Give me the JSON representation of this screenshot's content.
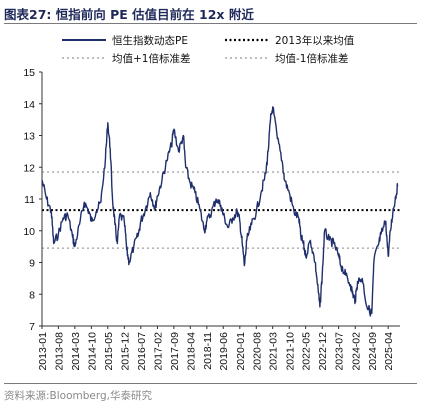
{
  "figure_label": "图表27:",
  "figure_title": "恒指前向 PE 估值目前在 12x 附近",
  "source": "资料来源:Bloomberg,华泰研究",
  "chart_data": {
    "type": "line",
    "title": "恒指前向 PE 估值目前在 12x 附近",
    "xlabel": "",
    "ylabel": "",
    "ylim": [
      7,
      15
    ],
    "yticks": [
      "7",
      "8",
      "9",
      "10",
      "11",
      "12",
      "13",
      "14",
      "15"
    ],
    "xticks": [
      "2013-01",
      "2013-08",
      "2014-03",
      "2014-10",
      "2015-05",
      "2015-12",
      "2016-07",
      "2017-02",
      "2017-09",
      "2018-04",
      "2018-11",
      "2019-06",
      "2020-01",
      "2020-08",
      "2021-03",
      "2021-10",
      "2022-05",
      "2022-12",
      "2023-07",
      "2024-02",
      "2024-09",
      "2025-04"
    ],
    "grid": false,
    "legend_position": "top",
    "series": [
      {
        "name": "恒生指数动态PE",
        "style": "solid",
        "color": "#1f2f6b",
        "x": [
          "2013-01",
          "2013-03",
          "2013-05",
          "2013-06",
          "2013-08",
          "2013-10",
          "2013-12",
          "2014-02",
          "2014-03",
          "2014-05",
          "2014-07",
          "2014-09",
          "2014-10",
          "2014-12",
          "2015-02",
          "2015-04",
          "2015-05",
          "2015-06",
          "2015-07",
          "2015-08",
          "2015-09",
          "2015-10",
          "2015-12",
          "2016-01",
          "2016-02",
          "2016-04",
          "2016-06",
          "2016-07",
          "2016-09",
          "2016-11",
          "2017-01",
          "2017-02",
          "2017-04",
          "2017-06",
          "2017-08",
          "2017-09",
          "2017-11",
          "2018-01",
          "2018-02",
          "2018-04",
          "2018-06",
          "2018-08",
          "2018-10",
          "2018-11",
          "2019-01",
          "2019-03",
          "2019-05",
          "2019-06",
          "2019-08",
          "2019-10",
          "2019-12",
          "2020-01",
          "2020-02",
          "2020-03",
          "2020-04",
          "2020-06",
          "2020-08",
          "2020-10",
          "2020-12",
          "2021-01",
          "2021-02",
          "2021-03",
          "2021-05",
          "2021-07",
          "2021-08",
          "2021-10",
          "2021-12",
          "2022-02",
          "2022-03",
          "2022-04",
          "2022-05",
          "2022-07",
          "2022-09",
          "2022-10",
          "2022-11",
          "2022-12",
          "2023-01",
          "2023-03",
          "2023-05",
          "2023-07",
          "2023-08",
          "2023-10",
          "2023-12",
          "2024-01",
          "2024-02",
          "2024-03",
          "2024-05",
          "2024-07",
          "2024-09",
          "2024-10",
          "2024-12",
          "2025-01",
          "2025-03",
          "2025-04",
          "2025-05",
          "2025-06",
          "2025-07",
          "2025-08"
        ],
        "values": [
          11.6,
          11.0,
          10.6,
          9.6,
          9.9,
          10.4,
          10.5,
          9.8,
          9.5,
          10.2,
          10.9,
          10.6,
          10.3,
          10.6,
          10.9,
          12.3,
          13.4,
          12.6,
          11.0,
          10.2,
          9.6,
          10.5,
          10.3,
          9.4,
          9.0,
          9.5,
          9.9,
          10.3,
          10.7,
          11.2,
          10.7,
          11.1,
          11.6,
          12.2,
          12.7,
          13.2,
          12.5,
          13.0,
          12.0,
          11.5,
          11.2,
          10.7,
          10.0,
          10.3,
          10.6,
          11.0,
          10.8,
          10.5,
          10.1,
          10.4,
          10.6,
          10.3,
          9.6,
          8.9,
          9.7,
          10.2,
          10.6,
          11.2,
          11.8,
          12.5,
          13.5,
          13.9,
          12.9,
          12.2,
          11.6,
          11.2,
          10.6,
          10.4,
          9.8,
          9.6,
          9.2,
          9.7,
          9.0,
          8.3,
          7.6,
          8.6,
          10.0,
          9.7,
          9.6,
          9.2,
          8.9,
          8.6,
          8.3,
          8.0,
          7.8,
          8.4,
          8.5,
          7.6,
          7.4,
          9.1,
          9.6,
          9.9,
          10.3,
          9.2,
          10.0,
          10.6,
          11.0,
          11.4
        ]
      },
      {
        "name": "2013年以来均值",
        "style": "dotted",
        "color": "#000000",
        "value": 10.65
      },
      {
        "name": "均值+1倍标准差",
        "style": "dotted",
        "color": "#b4b4b4",
        "value": 11.85
      },
      {
        "name": "均值-1倍标准差",
        "style": "dotted",
        "color": "#b4b4b4",
        "value": 9.45
      }
    ]
  }
}
